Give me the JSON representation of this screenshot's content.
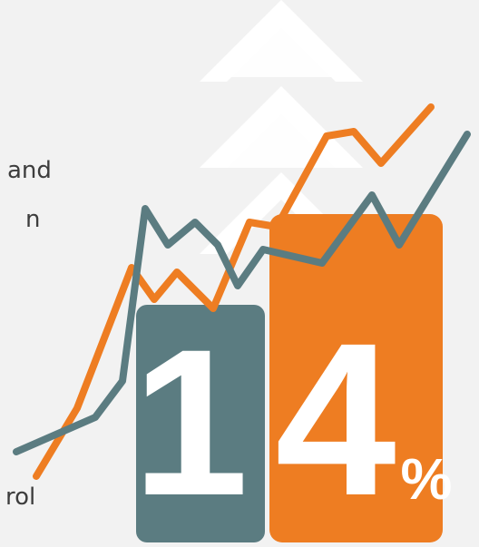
{
  "side_text": [
    "and",
    "n",
    "rol"
  ],
  "figure": {
    "digit_one": "1",
    "digit_four": "4",
    "percent": "%"
  }
}
